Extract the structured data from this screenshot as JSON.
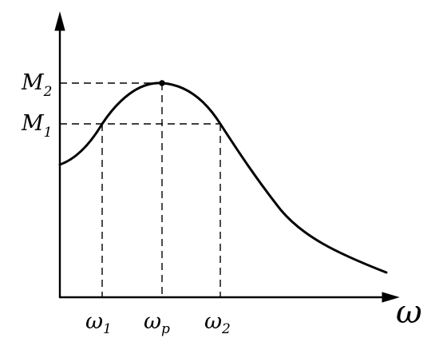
{
  "diagram": {
    "y_ticks": {
      "m2": {
        "main": "M",
        "sub": "2"
      },
      "m1": {
        "main": "M",
        "sub": "1"
      }
    },
    "x_ticks": {
      "w1": {
        "main": "ω",
        "sub": "1"
      },
      "wp": {
        "main": "ω",
        "sub": "p"
      },
      "w2": {
        "main": "ω",
        "sub": "2"
      }
    },
    "x_axis_label": "ω"
  }
}
